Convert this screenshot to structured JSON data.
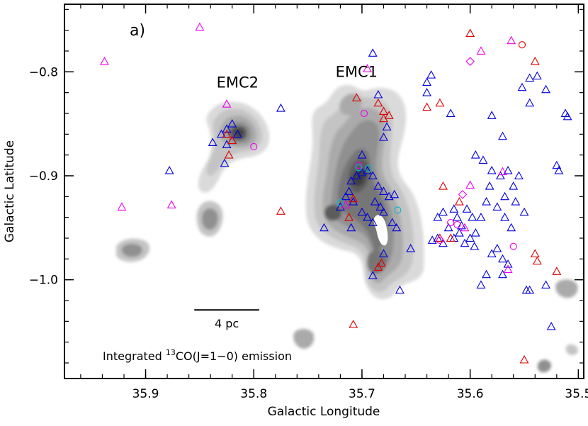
{
  "chart_data": {
    "type": "scatter",
    "panel_label": "a)",
    "xlabel": "Galactic Longitude",
    "ylabel": "Galactic Latitude",
    "xlim": [
      35.975,
      35.495
    ],
    "ylim": [
      -1.095,
      -0.735
    ],
    "x_ticks": [
      35.9,
      35.8,
      35.7,
      35.6,
      35.5
    ],
    "x_tick_labels": [
      "35.9",
      "35.8",
      "35.7",
      "35.6",
      "35.5"
    ],
    "y_ticks": [
      -0.8,
      -0.9,
      -1.0
    ],
    "y_tick_labels": [
      "−0.8",
      "−0.9",
      "−1.0"
    ],
    "x_minor_step": 0.02,
    "y_minor_step": 0.02,
    "annotations": {
      "emc1": {
        "text": "EMC1",
        "x": 35.705,
        "y": -0.805
      },
      "emc2": {
        "text": "EMC2",
        "x": 35.815,
        "y": -0.815
      },
      "scale_bar": {
        "text": "4 pc",
        "x_start": 35.855,
        "x_end": 35.795,
        "y": -1.029
      },
      "emission_prefix": "Integrated ",
      "emission_isotope": "13",
      "emission_suffix": "CO(J=1−0) emission"
    },
    "colors": {
      "blue": "#0000dd",
      "red": "#dd0000",
      "magenta": "#ee00ee",
      "cyan": "#00bbcc",
      "cloud_levels": [
        "#dadada",
        "#c4c4c4",
        "#aaaaaa",
        "#909090",
        "#767676",
        "#5c5c5c",
        "#404040"
      ]
    },
    "clouds": [
      {
        "name": "EMC1",
        "x0": 35.73,
        "x1": 35.64,
        "y0": -1.01,
        "y1": -0.82
      },
      {
        "name": "EMC2",
        "x0": 35.845,
        "x1": 35.795,
        "y0": -0.915,
        "y1": -0.84
      }
    ],
    "series": [
      {
        "marker": "triangle",
        "color": "blue",
        "points": [
          [
            35.82,
            -0.85
          ],
          [
            35.825,
            -0.855
          ],
          [
            35.83,
            -0.86
          ],
          [
            35.815,
            -0.86
          ],
          [
            35.82,
            -0.866
          ],
          [
            35.838,
            -0.868
          ],
          [
            35.825,
            -0.87
          ],
          [
            35.827,
            -0.888
          ],
          [
            35.775,
            -0.835
          ],
          [
            35.878,
            -0.895
          ],
          [
            35.71,
            -0.905
          ],
          [
            35.705,
            -0.9
          ],
          [
            35.7,
            -0.897
          ],
          [
            35.695,
            -0.895
          ],
          [
            35.69,
            -0.9
          ],
          [
            35.685,
            -0.91
          ],
          [
            35.68,
            -0.915
          ],
          [
            35.675,
            -0.92
          ],
          [
            35.67,
            -0.918
          ],
          [
            35.712,
            -0.915
          ],
          [
            35.715,
            -0.92
          ],
          [
            35.708,
            -0.925
          ],
          [
            35.72,
            -0.93
          ],
          [
            35.7,
            -0.935
          ],
          [
            35.695,
            -0.94
          ],
          [
            35.688,
            -0.925
          ],
          [
            35.683,
            -0.93
          ],
          [
            35.68,
            -0.935
          ],
          [
            35.69,
            -0.945
          ],
          [
            35.672,
            -0.945
          ],
          [
            35.668,
            -0.95
          ],
          [
            35.735,
            -0.95
          ],
          [
            35.71,
            -0.95
          ],
          [
            35.68,
            -0.975
          ],
          [
            35.69,
            -0.996
          ],
          [
            35.665,
            -1.01
          ],
          [
            35.655,
            -0.97
          ],
          [
            35.7,
            -0.88
          ],
          [
            35.68,
            -0.863
          ],
          [
            35.677,
            -0.853
          ],
          [
            35.685,
            -0.822
          ],
          [
            35.69,
            -0.782
          ],
          [
            35.64,
            -0.81
          ],
          [
            35.64,
            -0.82
          ],
          [
            35.636,
            -0.803
          ],
          [
            35.618,
            -0.84
          ],
          [
            35.58,
            -0.842
          ],
          [
            35.545,
            -0.806
          ],
          [
            35.538,
            -0.804
          ],
          [
            35.552,
            -0.815
          ],
          [
            35.53,
            -0.817
          ],
          [
            35.512,
            -0.84
          ],
          [
            35.51,
            -0.843
          ],
          [
            35.545,
            -0.83
          ],
          [
            35.57,
            -0.862
          ],
          [
            35.595,
            -0.88
          ],
          [
            35.588,
            -0.885
          ],
          [
            35.58,
            -0.895
          ],
          [
            35.572,
            -0.9
          ],
          [
            35.565,
            -0.895
          ],
          [
            35.56,
            -0.91
          ],
          [
            35.568,
            -0.92
          ],
          [
            35.575,
            -0.93
          ],
          [
            35.568,
            -0.94
          ],
          [
            35.562,
            -0.95
          ],
          [
            35.582,
            -0.91
          ],
          [
            35.585,
            -0.925
          ],
          [
            35.59,
            -0.94
          ],
          [
            35.598,
            -0.94
          ],
          [
            35.603,
            -0.932
          ],
          [
            35.61,
            -0.955
          ],
          [
            35.615,
            -0.96
          ],
          [
            35.62,
            -0.95
          ],
          [
            35.625,
            -0.965
          ],
          [
            35.63,
            -0.96
          ],
          [
            35.635,
            -0.962
          ],
          [
            35.6,
            -0.96
          ],
          [
            35.605,
            -0.965
          ],
          [
            35.595,
            -0.955
          ],
          [
            35.58,
            -0.975
          ],
          [
            35.575,
            -0.97
          ],
          [
            35.57,
            -0.98
          ],
          [
            35.585,
            -0.995
          ],
          [
            35.59,
            -1.005
          ],
          [
            35.545,
            -1.01
          ],
          [
            35.548,
            -1.01
          ],
          [
            35.53,
            -1.005
          ],
          [
            35.525,
            -1.045
          ],
          [
            35.52,
            -0.89
          ],
          [
            35.518,
            -0.895
          ],
          [
            35.555,
            -0.9
          ],
          [
            35.55,
            -0.935
          ],
          [
            35.558,
            -0.925
          ],
          [
            35.612,
            -0.94
          ],
          [
            35.625,
            -0.935
          ],
          [
            35.63,
            -0.94
          ],
          [
            35.615,
            -0.932
          ],
          [
            35.608,
            -0.948
          ],
          [
            35.596,
            -0.968
          ],
          [
            35.565,
            -0.985
          ],
          [
            35.57,
            -0.995
          ]
        ]
      },
      {
        "marker": "triangle",
        "color": "red",
        "points": [
          [
            35.825,
            -0.86
          ],
          [
            35.82,
            -0.866
          ],
          [
            35.823,
            -0.88
          ],
          [
            35.705,
            -0.825
          ],
          [
            35.685,
            -0.83
          ],
          [
            35.68,
            -0.838
          ],
          [
            35.675,
            -0.842
          ],
          [
            35.68,
            -0.845
          ],
          [
            35.708,
            -0.922
          ],
          [
            35.712,
            -0.94
          ],
          [
            35.682,
            -0.984
          ],
          [
            35.685,
            -0.988
          ],
          [
            35.775,
            -0.934
          ],
          [
            35.708,
            -1.043
          ],
          [
            35.628,
            -0.83
          ],
          [
            35.64,
            -0.834
          ],
          [
            35.6,
            -0.763
          ],
          [
            35.54,
            -0.79
          ],
          [
            35.61,
            -0.925
          ],
          [
            35.625,
            -0.91
          ],
          [
            35.628,
            -0.96
          ],
          [
            35.54,
            -0.975
          ],
          [
            35.538,
            -0.982
          ],
          [
            35.52,
            -0.992
          ],
          [
            35.55,
            -1.077
          ],
          [
            35.618,
            -0.96
          ]
        ]
      },
      {
        "marker": "triangle",
        "color": "magenta",
        "points": [
          [
            35.938,
            -0.79
          ],
          [
            35.85,
            -0.757
          ],
          [
            35.825,
            -0.831
          ],
          [
            35.922,
            -0.93
          ],
          [
            35.876,
            -0.928
          ],
          [
            35.695,
            -0.797
          ],
          [
            35.562,
            -0.77
          ],
          [
            35.59,
            -0.78
          ],
          [
            35.6,
            -0.909
          ],
          [
            35.57,
            -0.896
          ],
          [
            35.565,
            -0.99
          ],
          [
            35.605,
            -0.95
          ],
          [
            35.715,
            -0.928
          ]
        ]
      },
      {
        "marker": "circle",
        "color": "magenta",
        "points": [
          [
            35.8,
            -0.872
          ],
          [
            35.698,
            -0.84
          ],
          [
            35.612,
            -0.947
          ],
          [
            35.618,
            -0.945
          ],
          [
            35.628,
            -0.962
          ],
          [
            35.56,
            -0.968
          ],
          [
            35.703,
            -0.89
          ]
        ]
      },
      {
        "marker": "circle",
        "color": "red",
        "points": [
          [
            35.552,
            -0.774
          ]
        ]
      },
      {
        "marker": "circle",
        "color": "cyan",
        "points": [
          [
            35.72,
            -0.926
          ],
          [
            35.703,
            -0.892
          ],
          [
            35.694,
            -0.893
          ],
          [
            35.667,
            -0.933
          ]
        ]
      },
      {
        "marker": "diamond",
        "color": "magenta",
        "points": [
          [
            35.6,
            -0.79
          ],
          [
            35.607,
            -0.918
          ]
        ]
      }
    ]
  }
}
